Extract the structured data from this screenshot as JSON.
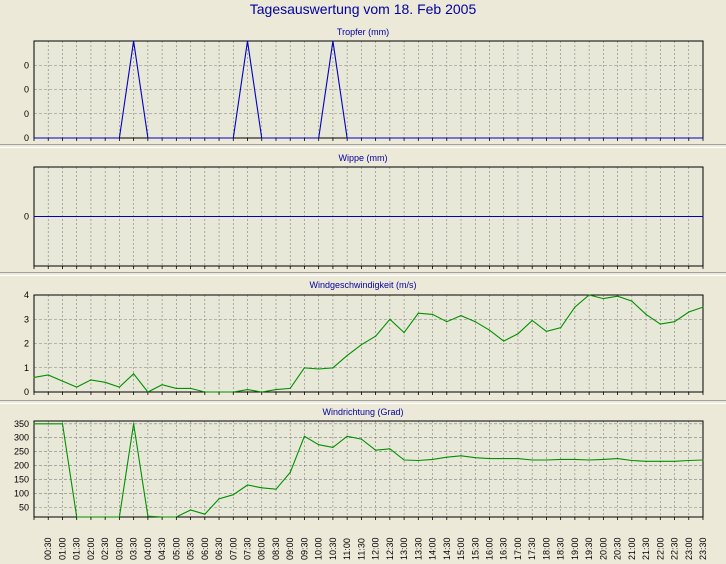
{
  "title": "Tagesauswertung vom 18. Feb 2005",
  "colors": {
    "background": "#ece9d8",
    "plot_background": "#e8e8d8",
    "grid": "#808080",
    "title": "#0000a0",
    "rain_line": "#0000c0",
    "wind_line": "#009000"
  },
  "x_tick_labels": [
    "00:30",
    "01:00",
    "01:30",
    "02:00",
    "02:30",
    "03:00",
    "03:30",
    "04:00",
    "04:30",
    "05:00",
    "05:30",
    "06:00",
    "06:30",
    "07:00",
    "07:30",
    "08:00",
    "08:30",
    "09:00",
    "09:30",
    "10:00",
    "10:30",
    "11:00",
    "11:30",
    "12:00",
    "12:30",
    "13:00",
    "13:30",
    "14:00",
    "14:30",
    "15:00",
    "15:30",
    "16:00",
    "16:30",
    "17:00",
    "17:30",
    "18:00",
    "18:30",
    "19:00",
    "19:30",
    "20:00",
    "20:30",
    "21:00",
    "21:30",
    "22:00",
    "22:30",
    "23:00",
    "23:30"
  ],
  "chart_data": [
    {
      "type": "line",
      "title": "Tropfer (mm)",
      "x": [
        "00:00",
        "00:30",
        "01:00",
        "01:30",
        "02:00",
        "02:30",
        "03:00",
        "03:30",
        "04:00",
        "04:30",
        "05:00",
        "05:30",
        "06:00",
        "06:30",
        "07:00",
        "07:30",
        "08:00",
        "08:30",
        "09:00",
        "09:30",
        "10:00",
        "10:30",
        "11:00",
        "11:30",
        "12:00",
        "12:30",
        "13:00",
        "13:30",
        "14:00",
        "14:30",
        "15:00",
        "15:30",
        "16:00",
        "16:30",
        "17:00",
        "17:30",
        "18:00",
        "18:30",
        "19:00",
        "19:30",
        "20:00",
        "20:30",
        "21:00",
        "21:30",
        "22:00",
        "22:30",
        "23:00",
        "23:30"
      ],
      "series": [
        {
          "values": [
            0,
            0,
            0,
            0,
            0,
            0,
            0,
            0.004,
            0,
            0,
            0,
            0,
            0,
            0,
            0,
            0.004,
            0,
            0,
            0,
            0,
            0,
            0.004,
            0,
            0,
            0,
            0,
            0,
            0,
            0,
            0,
            0,
            0,
            0,
            0,
            0,
            0,
            0,
            0,
            0,
            0,
            0,
            0,
            0,
            0,
            0,
            0,
            0,
            0
          ]
        }
      ],
      "y_ticks": [
        0,
        0.001,
        0.002,
        0.003
      ],
      "y_tick_labels": [
        "0",
        "0",
        "0",
        "0"
      ],
      "ylim": [
        0,
        0.004
      ],
      "grid": true
    },
    {
      "type": "line",
      "title": "Wippe (mm)",
      "x": [
        "00:00",
        "00:30",
        "01:00",
        "01:30",
        "02:00",
        "02:30",
        "03:00",
        "03:30",
        "04:00",
        "04:30",
        "05:00",
        "05:30",
        "06:00",
        "06:30",
        "07:00",
        "07:30",
        "08:00",
        "08:30",
        "09:00",
        "09:30",
        "10:00",
        "10:30",
        "11:00",
        "11:30",
        "12:00",
        "12:30",
        "13:00",
        "13:30",
        "14:00",
        "14:30",
        "15:00",
        "15:30",
        "16:00",
        "16:30",
        "17:00",
        "17:30",
        "18:00",
        "18:30",
        "19:00",
        "19:30",
        "20:00",
        "20:30",
        "21:00",
        "21:30",
        "22:00",
        "22:30",
        "23:00",
        "23:30"
      ],
      "series": [
        {
          "values": [
            0,
            0,
            0,
            0,
            0,
            0,
            0,
            0,
            0,
            0,
            0,
            0,
            0,
            0,
            0,
            0,
            0,
            0,
            0,
            0,
            0,
            0,
            0,
            0,
            0,
            0,
            0,
            0,
            0,
            0,
            0,
            0,
            0,
            0,
            0,
            0,
            0,
            0,
            0,
            0,
            0,
            0,
            0,
            0,
            0,
            0,
            0,
            0
          ]
        }
      ],
      "y_ticks": [
        0
      ],
      "y_tick_labels": [
        "0"
      ],
      "ylim": [
        -1,
        1
      ],
      "grid": true
    },
    {
      "type": "line",
      "title": "Windgeschwindigkeit (m/s)",
      "x": [
        "00:00",
        "00:30",
        "01:00",
        "01:30",
        "02:00",
        "02:30",
        "03:00",
        "03:30",
        "04:00",
        "04:30",
        "05:00",
        "05:30",
        "06:00",
        "06:30",
        "07:00",
        "07:30",
        "08:00",
        "08:30",
        "09:00",
        "09:30",
        "10:00",
        "10:30",
        "11:00",
        "11:30",
        "12:00",
        "12:30",
        "13:00",
        "13:30",
        "14:00",
        "14:30",
        "15:00",
        "15:30",
        "16:00",
        "16:30",
        "17:00",
        "17:30",
        "18:00",
        "18:30",
        "19:00",
        "19:30",
        "20:00",
        "20:30",
        "21:00",
        "21:30",
        "22:00",
        "22:30",
        "23:00",
        "23:30"
      ],
      "series": [
        {
          "values": [
            0.6,
            0.7,
            0.45,
            0.2,
            0.5,
            0.4,
            0.2,
            0.75,
            0.0,
            0.3,
            0.15,
            0.15,
            0.0,
            0.0,
            0.0,
            0.1,
            0.0,
            0.1,
            0.15,
            1.0,
            0.95,
            1.0,
            1.5,
            1.95,
            2.3,
            3.0,
            2.45,
            3.25,
            3.2,
            2.9,
            3.15,
            2.9,
            2.55,
            2.1,
            2.4,
            2.95,
            2.5,
            2.65,
            3.5,
            4.05,
            3.85,
            3.95,
            3.75,
            3.2,
            2.8,
            2.9,
            3.3,
            3.5
          ]
        }
      ],
      "y_ticks": [
        0,
        1,
        2,
        3,
        4
      ],
      "y_tick_labels": [
        "0",
        "1",
        "2",
        "3",
        "4"
      ],
      "ylim": [
        0,
        4
      ],
      "grid": true
    },
    {
      "type": "line",
      "title": "Windrichtung (Grad)",
      "x": [
        "00:00",
        "00:30",
        "01:00",
        "01:30",
        "02:00",
        "02:30",
        "03:00",
        "03:30",
        "04:00",
        "04:30",
        "05:00",
        "05:30",
        "06:00",
        "06:30",
        "07:00",
        "07:30",
        "08:00",
        "08:30",
        "09:00",
        "09:30",
        "10:00",
        "10:30",
        "11:00",
        "11:30",
        "12:00",
        "12:30",
        "13:00",
        "13:30",
        "14:00",
        "14:30",
        "15:00",
        "15:30",
        "16:00",
        "16:30",
        "17:00",
        "17:30",
        "18:00",
        "18:30",
        "19:00",
        "19:30",
        "20:00",
        "20:30",
        "21:00",
        "21:30",
        "22:00",
        "22:30",
        "23:00",
        "23:30"
      ],
      "series": [
        {
          "values": [
            350,
            350,
            350,
            0,
            0,
            0,
            0,
            350,
            18,
            10,
            10,
            40,
            25,
            80,
            95,
            130,
            120,
            115,
            175,
            305,
            275,
            265,
            305,
            295,
            255,
            260,
            220,
            218,
            222,
            230,
            235,
            228,
            225,
            225,
            225,
            220,
            220,
            222,
            222,
            220,
            222,
            225,
            218,
            215,
            215,
            215,
            218,
            220
          ]
        }
      ],
      "y_ticks": [
        50,
        100,
        150,
        200,
        250,
        300,
        350
      ],
      "y_tick_labels": [
        "50",
        "100",
        "150",
        "200",
        "250",
        "300",
        "350"
      ],
      "ylim": [
        15,
        360
      ],
      "grid": true
    }
  ]
}
